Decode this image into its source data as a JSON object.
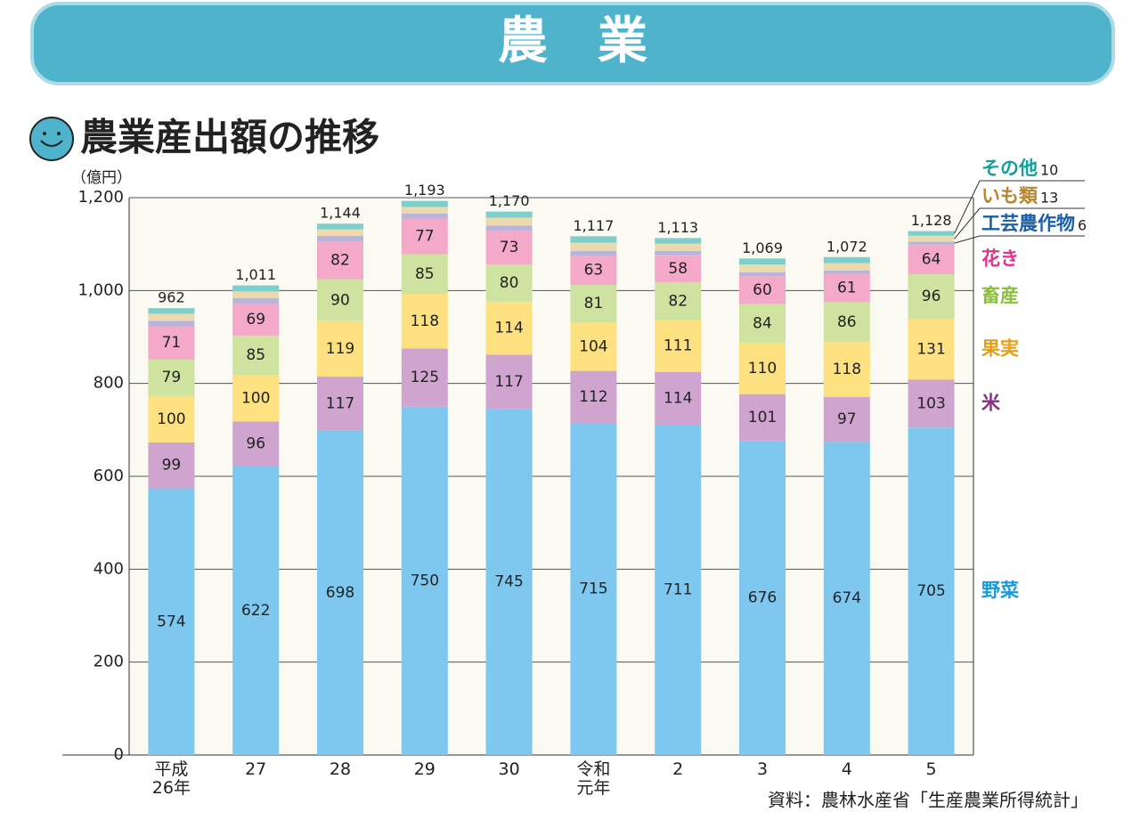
{
  "header": {
    "title": "農　業"
  },
  "chart_data": {
    "type": "stacked_bar",
    "title": "農業産出額の推移",
    "y_label": "（億円）",
    "source": "資料：農林水産省「生産農業所得統計」",
    "categories": [
      "平成\n26年",
      "27",
      "28",
      "29",
      "30",
      "令和\n元年",
      "2",
      "3",
      "4",
      "5"
    ],
    "ylim": [
      0,
      1200
    ],
    "yticks": [
      0,
      200,
      400,
      600,
      800,
      {
        "value": 1000,
        "label": "1,000"
      },
      {
        "value": 1200,
        "label": "1,200"
      }
    ],
    "grid": true,
    "series": [
      {
        "name": "野菜",
        "color": "#7ec8ef",
        "label_color": "#1a9ad6",
        "labels": true,
        "values": [
          574,
          622,
          698,
          750,
          745,
          715,
          711,
          676,
          674,
          705
        ]
      },
      {
        "name": "米",
        "color": "#cfa5cf",
        "label_color": "#8b2c8a",
        "labels": true,
        "values": [
          99,
          96,
          117,
          125,
          117,
          112,
          114,
          101,
          97,
          103
        ]
      },
      {
        "name": "果実",
        "color": "#fde07f",
        "label_color": "#e6a018",
        "labels": true,
        "values": [
          100,
          100,
          119,
          118,
          114,
          104,
          111,
          110,
          118,
          131
        ]
      },
      {
        "name": "畜産",
        "color": "#cfe3a0",
        "label_color": "#8cbf3c",
        "labels": true,
        "values": [
          79,
          85,
          90,
          85,
          80,
          81,
          82,
          84,
          86,
          96
        ]
      },
      {
        "name": "花き",
        "color": "#f4a9c9",
        "label_color": "#e0338a",
        "labels": true,
        "values": [
          71,
          69,
          82,
          77,
          73,
          63,
          58,
          60,
          61,
          64
        ]
      },
      {
        "name": "工芸農作物",
        "color": "#b9b4dc",
        "label_color": "#1a5fa8",
        "labels": false,
        "values": [
          12,
          12,
          12,
          11,
          11,
          10,
          9,
          8,
          7,
          6
        ]
      },
      {
        "name": "いも類",
        "color": "#ecd9ae",
        "label_color": "#b8862e",
        "labels": false,
        "values": [
          15,
          14,
          14,
          14,
          17,
          18,
          16,
          17,
          16,
          13
        ]
      },
      {
        "name": "その他",
        "color": "#7dcfcb",
        "label_color": "#159f9a",
        "labels": false,
        "values": [
          12,
          13,
          12,
          13,
          13,
          14,
          12,
          13,
          13,
          10
        ]
      }
    ],
    "totals": [
      962,
      1011,
      1144,
      1193,
      1170,
      1117,
      1113,
      1069,
      1072,
      1128
    ],
    "total_labels": [
      "962",
      "1,011",
      "1,144",
      "1,193",
      "1,170",
      "1,117",
      "1,113",
      "1,069",
      "1,072",
      "1,128"
    ]
  }
}
